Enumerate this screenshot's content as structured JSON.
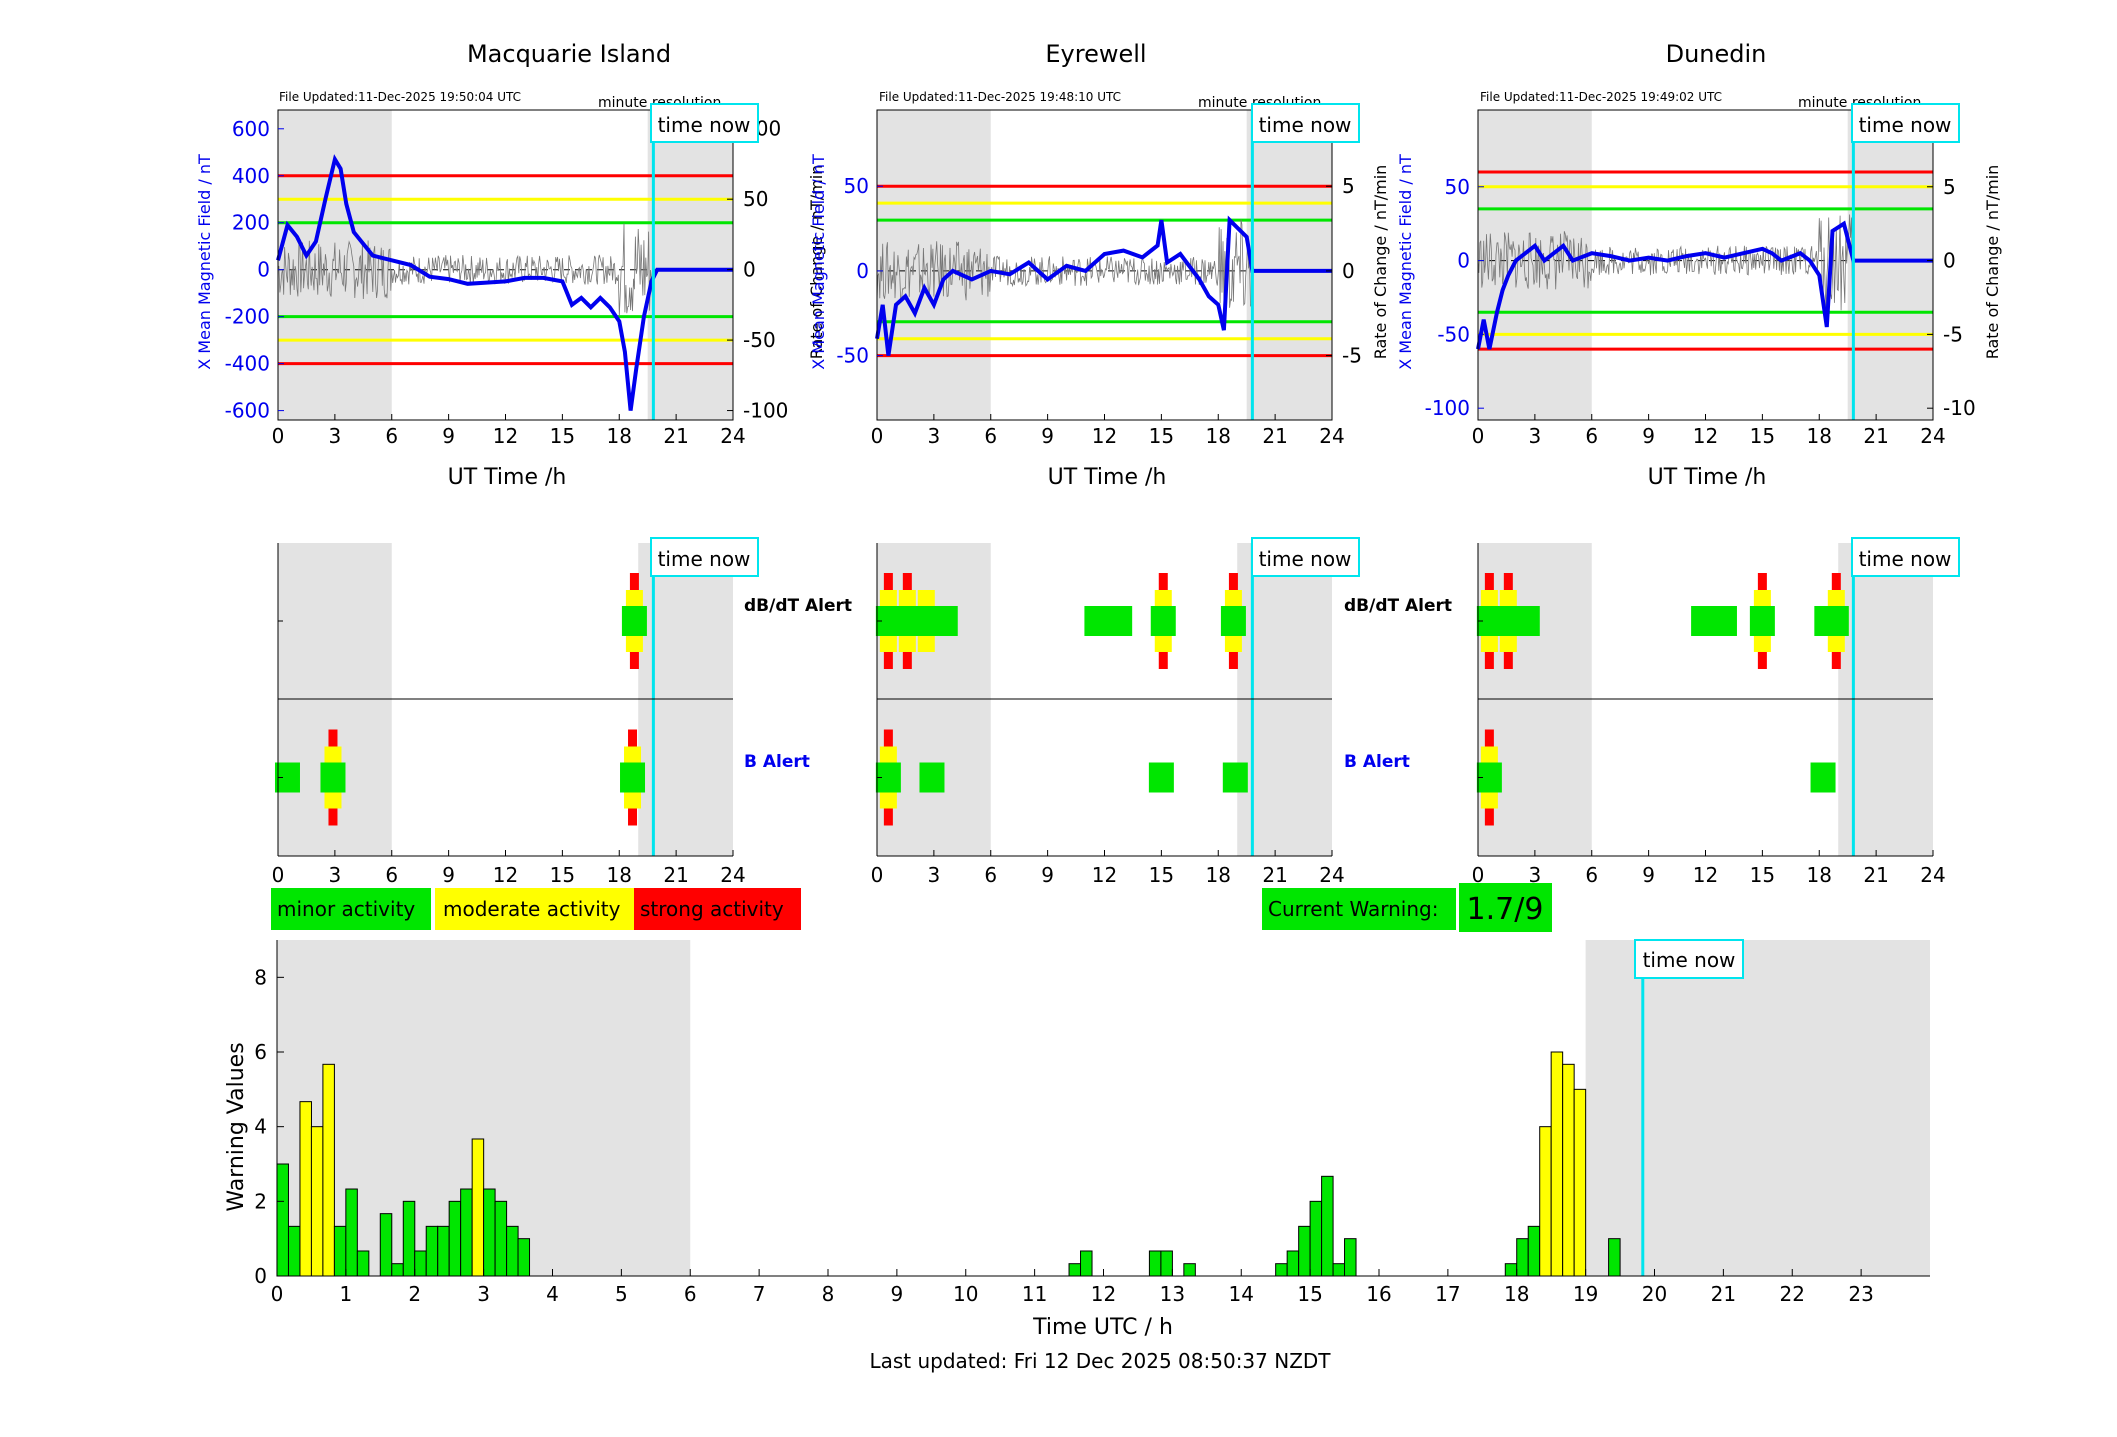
{
  "stations": [
    {
      "title": "Macquarie Island",
      "file_updated": "File Updated:11-Dec-2025 19:50:04 UTC",
      "resolution_label": "minute resolution",
      "time_now_label": "time now",
      "left_ylabel": "X Mean Magnetic Field / nT",
      "right_ylabel": "Rate of Change / nT/min",
      "xlabel": "UT Time /h",
      "left_ylim": [
        -640,
        680
      ],
      "left_yticks": [
        -600,
        -400,
        -200,
        0,
        200,
        400,
        600
      ],
      "right_ylim": [
        -106.7,
        113.3
      ],
      "right_yticks": [
        -100,
        -50,
        0,
        50,
        100
      ],
      "thresholds": {
        "red": 400,
        "yellow": 300,
        "green": 200
      },
      "time_now_h": 19.8,
      "field_trace": [
        [
          0,
          40
        ],
        [
          0.5,
          190
        ],
        [
          1,
          140
        ],
        [
          1.5,
          60
        ],
        [
          2,
          120
        ],
        [
          2.5,
          300
        ],
        [
          3,
          470
        ],
        [
          3.3,
          430
        ],
        [
          3.6,
          280
        ],
        [
          4,
          160
        ],
        [
          5,
          60
        ],
        [
          6,
          40
        ],
        [
          7,
          20
        ],
        [
          8,
          -30
        ],
        [
          9,
          -40
        ],
        [
          10,
          -60
        ],
        [
          11,
          -55
        ],
        [
          12,
          -50
        ],
        [
          13,
          -35
        ],
        [
          14,
          -35
        ],
        [
          15,
          -50
        ],
        [
          15.5,
          -150
        ],
        [
          16,
          -120
        ],
        [
          16.5,
          -160
        ],
        [
          17,
          -120
        ],
        [
          17.5,
          -160
        ],
        [
          18,
          -220
        ],
        [
          18.3,
          -350
        ],
        [
          18.6,
          -600
        ],
        [
          18.9,
          -420
        ],
        [
          19.3,
          -200
        ],
        [
          19.7,
          -50
        ],
        [
          20,
          0
        ],
        [
          24,
          0
        ]
      ],
      "alerts_dbdt": [
        [
          18.8,
          3
        ]
      ],
      "alerts_b": [
        [
          0.5,
          1
        ],
        [
          2.9,
          3
        ],
        [
          18.7,
          3
        ]
      ]
    },
    {
      "title": "Eyrewell",
      "file_updated": "File Updated:11-Dec-2025 19:48:10 UTC",
      "resolution_label": "minute resolution",
      "time_now_label": "time now",
      "left_ylabel": "X Mean Magnetic Field / nT",
      "right_ylabel": "Rate of Change / nT/min",
      "xlabel": "UT Time /h",
      "left_ylim": [
        -88,
        95
      ],
      "left_yticks": [
        -50,
        0,
        50
      ],
      "right_ylim": [
        -8.8,
        9.5
      ],
      "right_yticks": [
        -5,
        0,
        5
      ],
      "thresholds": {
        "red": 50,
        "yellow": 40,
        "green": 30
      },
      "time_now_h": 19.8,
      "field_trace": [
        [
          0,
          -40
        ],
        [
          0.3,
          -20
        ],
        [
          0.6,
          -50
        ],
        [
          1,
          -20
        ],
        [
          1.5,
          -15
        ],
        [
          2,
          -25
        ],
        [
          2.5,
          -10
        ],
        [
          3,
          -20
        ],
        [
          3.5,
          -5
        ],
        [
          4,
          0
        ],
        [
          5,
          -5
        ],
        [
          6,
          0
        ],
        [
          7,
          -2
        ],
        [
          8,
          5
        ],
        [
          9,
          -5
        ],
        [
          10,
          3
        ],
        [
          11,
          0
        ],
        [
          12,
          10
        ],
        [
          13,
          12
        ],
        [
          14,
          8
        ],
        [
          14.8,
          15
        ],
        [
          15,
          30
        ],
        [
          15.3,
          5
        ],
        [
          16,
          10
        ],
        [
          17,
          -5
        ],
        [
          17.5,
          -15
        ],
        [
          18,
          -20
        ],
        [
          18.3,
          -35
        ],
        [
          18.6,
          30
        ],
        [
          19.5,
          20
        ],
        [
          19.8,
          0
        ],
        [
          24,
          0
        ]
      ],
      "alerts_dbdt": [
        [
          0.6,
          3
        ],
        [
          1.6,
          3
        ],
        [
          2.6,
          2
        ],
        [
          3.6,
          1
        ],
        [
          11.6,
          1
        ],
        [
          12.8,
          1
        ],
        [
          15.1,
          3
        ],
        [
          18.8,
          3
        ]
      ],
      "alerts_b": [
        [
          0.6,
          3
        ],
        [
          2.9,
          1
        ],
        [
          15.0,
          1
        ],
        [
          18.9,
          1
        ]
      ]
    },
    {
      "title": "Dunedin",
      "file_updated": "File Updated:11-Dec-2025 19:49:02 UTC",
      "resolution_label": "minute resolution",
      "time_now_label": "time now",
      "left_ylabel": "X Mean Magnetic Field / nT",
      "right_ylabel": "Rate of Change / nT/min",
      "xlabel": "UT Time /h",
      "left_ylim": [
        -108,
        102
      ],
      "left_yticks": [
        -100,
        -50,
        0,
        50
      ],
      "right_ylim": [
        -10.8,
        10.2
      ],
      "right_yticks": [
        -10,
        -5,
        0,
        5
      ],
      "thresholds": {
        "red": 60,
        "yellow": 50,
        "green": 35
      },
      "time_now_h": 19.8,
      "field_trace": [
        [
          0,
          -60
        ],
        [
          0.3,
          -40
        ],
        [
          0.6,
          -60
        ],
        [
          1,
          -35
        ],
        [
          1.3,
          -20
        ],
        [
          1.6,
          -10
        ],
        [
          2,
          0
        ],
        [
          2.5,
          5
        ],
        [
          3,
          10
        ],
        [
          3.5,
          0
        ],
        [
          4,
          5
        ],
        [
          4.5,
          10
        ],
        [
          5,
          0
        ],
        [
          6,
          5
        ],
        [
          7,
          3
        ],
        [
          8,
          0
        ],
        [
          9,
          2
        ],
        [
          10,
          0
        ],
        [
          11,
          3
        ],
        [
          12,
          5
        ],
        [
          13,
          2
        ],
        [
          14,
          5
        ],
        [
          15,
          8
        ],
        [
          15.5,
          5
        ],
        [
          16,
          0
        ],
        [
          17,
          5
        ],
        [
          17.5,
          0
        ],
        [
          18,
          -10
        ],
        [
          18.4,
          -45
        ],
        [
          18.7,
          20
        ],
        [
          19.3,
          25
        ],
        [
          19.8,
          0
        ],
        [
          24,
          0
        ]
      ],
      "alerts_dbdt": [
        [
          0.6,
          3
        ],
        [
          1.6,
          3
        ],
        [
          2.6,
          1
        ],
        [
          11.9,
          1
        ],
        [
          13.0,
          1
        ],
        [
          15.0,
          3
        ],
        [
          18.4,
          1
        ],
        [
          18.9,
          3
        ]
      ],
      "alerts_b": [
        [
          0.6,
          3
        ],
        [
          18.2,
          1
        ]
      ]
    }
  ],
  "alert_labels": {
    "dbdt": "dB/dT Alert",
    "b": "B Alert"
  },
  "legend": {
    "minor": "minor activity",
    "moderate": "moderate activity",
    "strong": "strong activity"
  },
  "current_warning": {
    "label": "Current Warning:",
    "value": "1.7/9"
  },
  "warning_chart": {
    "ylabel": "Warning Values",
    "xlabel": "Time UTC / h",
    "time_now_label": "time now",
    "time_now_h": 19.83,
    "ylim": [
      0,
      9
    ],
    "yticks": [
      0,
      2,
      4,
      6,
      8
    ],
    "xticks": [
      0,
      1,
      2,
      3,
      4,
      5,
      6,
      7,
      8,
      9,
      10,
      11,
      12,
      13,
      14,
      15,
      16,
      17,
      18,
      19,
      20,
      21,
      22,
      23
    ]
  },
  "chart_data": {
    "type": "bar",
    "title": "",
    "xlabel": "Time UTC / h",
    "ylabel": "Warning Values",
    "xlim": [
      0,
      24
    ],
    "ylim": [
      0,
      9
    ],
    "bar_width_h": 0.167,
    "x": [
      0.083,
      0.25,
      0.417,
      0.583,
      0.75,
      0.917,
      1.083,
      1.25,
      1.583,
      1.75,
      1.917,
      2.083,
      2.25,
      2.417,
      2.583,
      2.75,
      2.917,
      3.083,
      3.25,
      3.417,
      3.583,
      11.583,
      11.75,
      12.75,
      12.917,
      13.25,
      14.583,
      14.75,
      14.917,
      15.083,
      15.25,
      15.417,
      15.583,
      17.917,
      18.083,
      18.25,
      18.417,
      18.583,
      18.75,
      18.917,
      19.417
    ],
    "values": [
      3.0,
      1.33,
      4.67,
      4.0,
      5.67,
      1.33,
      2.33,
      0.67,
      1.67,
      0.33,
      2.0,
      0.67,
      1.33,
      1.33,
      2.0,
      2.33,
      3.67,
      2.33,
      2.0,
      1.33,
      1.0,
      0.33,
      0.67,
      0.67,
      0.67,
      0.33,
      0.33,
      0.67,
      1.33,
      2.0,
      2.67,
      0.33,
      1.0,
      0.33,
      1.0,
      1.33,
      4.0,
      6.0,
      5.67,
      5.0,
      1.0
    ],
    "level_colors": {
      "minor": "#00e600",
      "moderate": "#ffff00",
      "strong": "#ff0000"
    },
    "moderate_threshold": 3.5
  },
  "last_updated": "Last updated: Fri 12 Dec 2025 08:50:37 NZDT",
  "colors": {
    "night_shade": "#e3e3e3",
    "time_now": "#00e5ee",
    "field": "#0000ee",
    "minor": "#00e600",
    "moderate": "#ffff00",
    "strong": "#ff0000"
  }
}
